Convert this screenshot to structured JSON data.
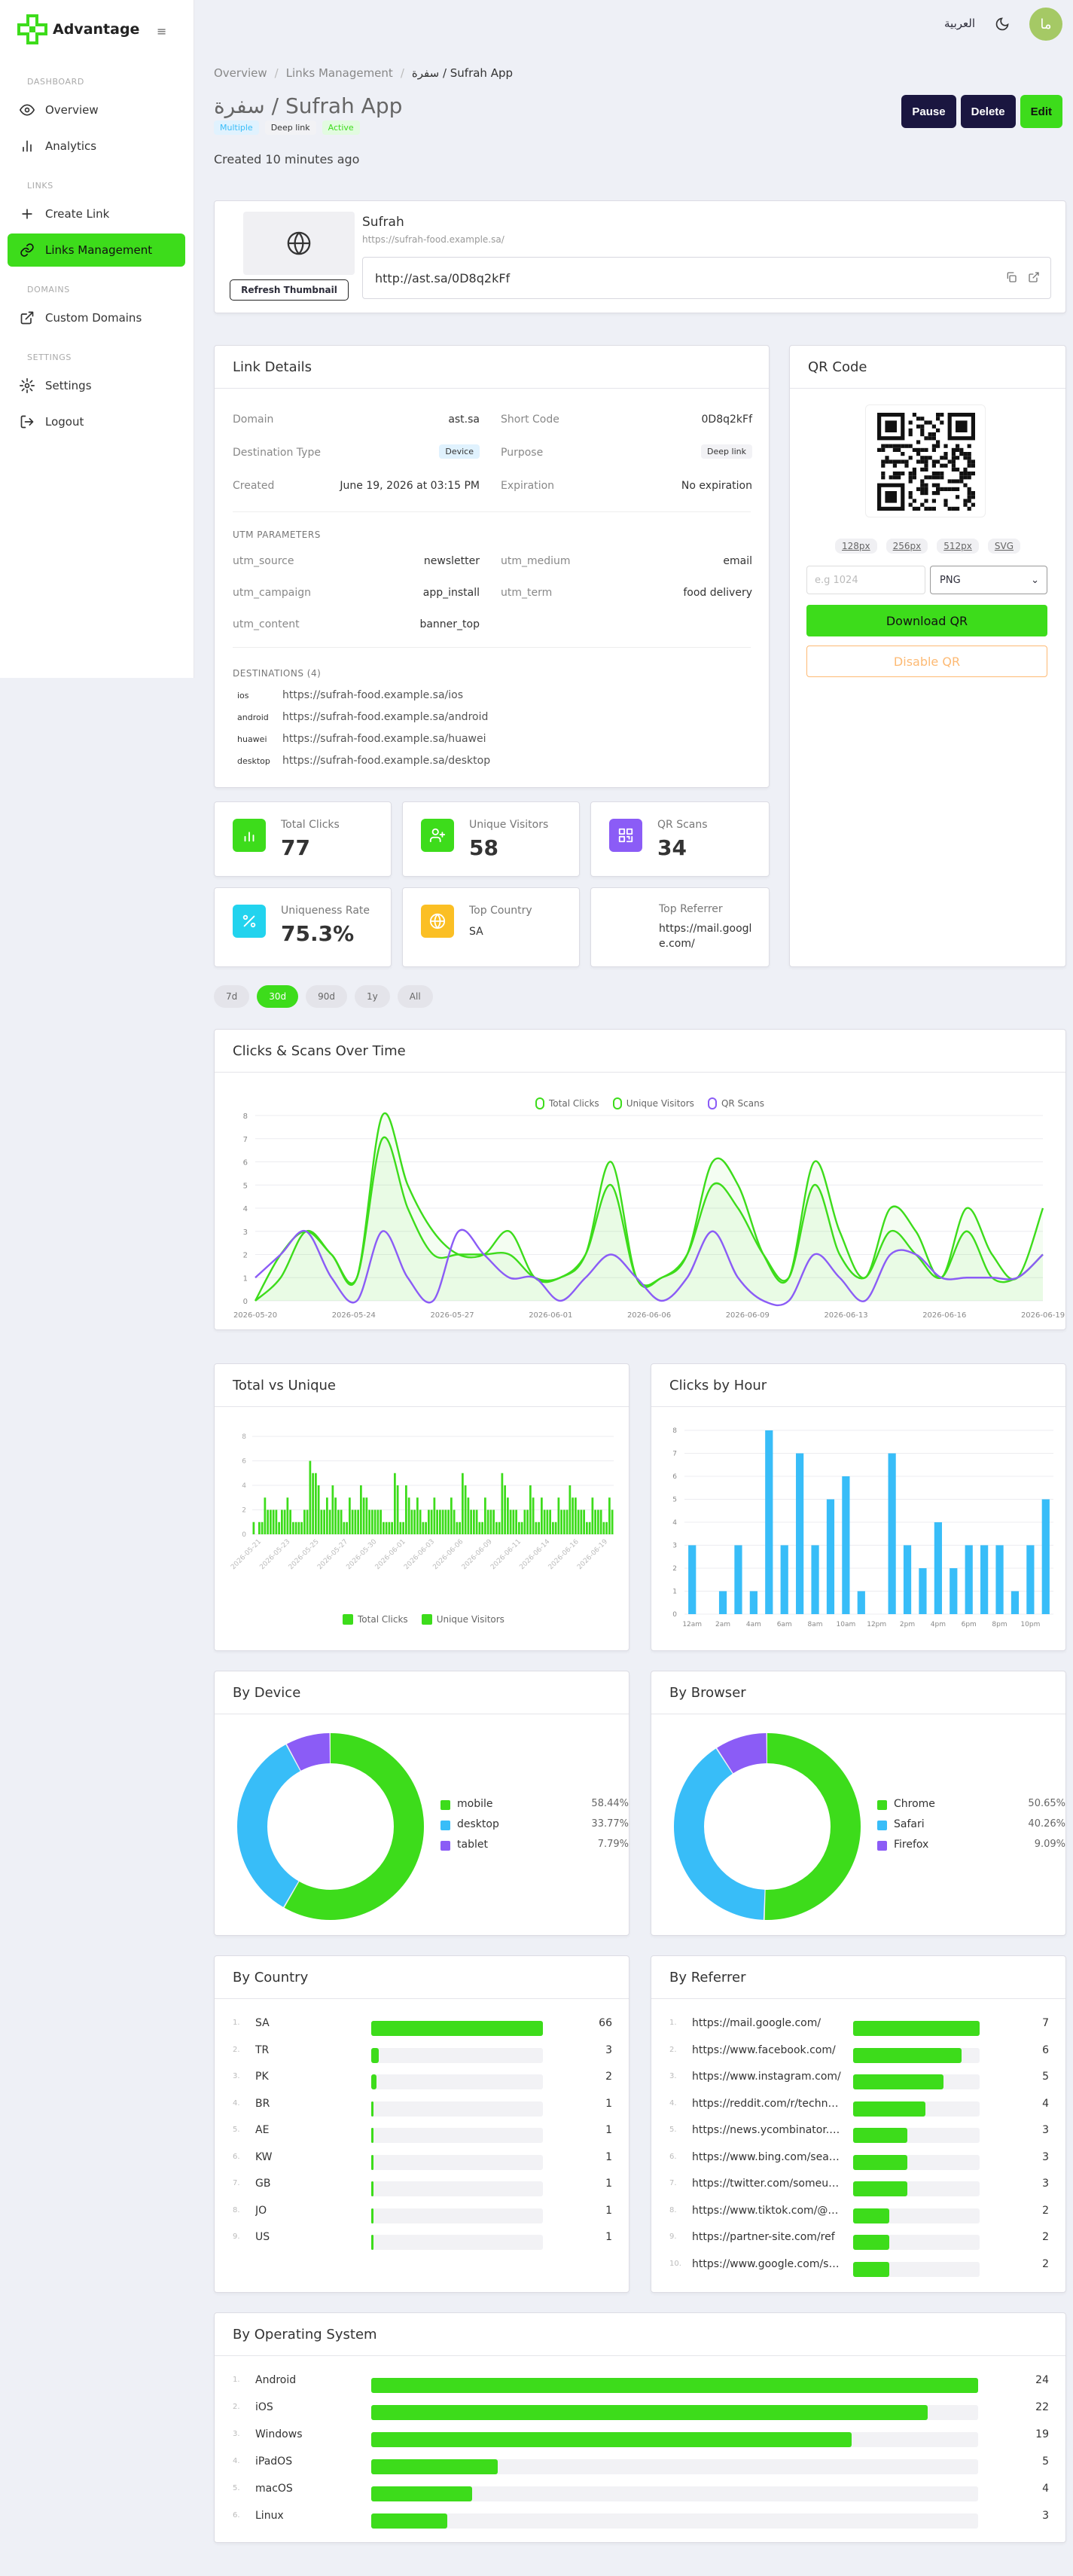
{
  "app": {
    "name": "Advantage",
    "lang_toggle": "العربية",
    "avatar_initial": "ما"
  },
  "sidebar": {
    "sections": [
      {
        "label": "DASHBOARD"
      },
      {
        "label": "LINKS"
      },
      {
        "label": "DOMAINS"
      },
      {
        "label": "SETTINGS"
      }
    ],
    "items": [
      {
        "label": "Overview",
        "icon": "eye-icon"
      },
      {
        "label": "Analytics",
        "icon": "bar-chart-icon"
      },
      {
        "label": "Create Link",
        "icon": "plus-icon"
      },
      {
        "label": "Links Management",
        "icon": "link-icon",
        "active": true
      },
      {
        "label": "Custom Domains",
        "icon": "external-link-icon"
      },
      {
        "label": "Settings",
        "icon": "gear-icon"
      },
      {
        "label": "Logout",
        "icon": "logout-icon"
      }
    ]
  },
  "breadcrumb": {
    "items": [
      "Overview",
      "Links Management",
      "سفرة / Sufrah App"
    ]
  },
  "page": {
    "title": "سفرة / Sufrah App",
    "badges": [
      "Multiple",
      "Deep link",
      "Active"
    ],
    "created": "Created 10 minutes ago",
    "actions": {
      "pause": "Pause",
      "delete": "Delete",
      "edit": "Edit"
    }
  },
  "preview": {
    "refresh_label": "Refresh Thumbnail",
    "site_name": "Sufrah",
    "site_url": "https://sufrah-food.example.sa/",
    "short_url": "http://ast.sa/0D8q2kFf"
  },
  "details": {
    "title": "Link Details",
    "fields": [
      {
        "k": "Domain",
        "v": "ast.sa"
      },
      {
        "k": "Short Code",
        "v": "0D8q2kFf"
      },
      {
        "k": "Destination Type",
        "v": "Device"
      },
      {
        "k": "Purpose",
        "v": "Deep link"
      },
      {
        "k": "Created",
        "v": "June 19, 2026 at 03:15 PM"
      },
      {
        "k": "Expiration",
        "v": "No expiration"
      }
    ],
    "utm_title": "UTM PARAMETERS",
    "utm": [
      {
        "k": "utm_source",
        "v": "newsletter"
      },
      {
        "k": "utm_medium",
        "v": "email"
      },
      {
        "k": "utm_campaign",
        "v": "app_install"
      },
      {
        "k": "utm_term",
        "v": "food delivery"
      },
      {
        "k": "utm_content",
        "v": "banner_top"
      }
    ],
    "dest_title": "DESTINATIONS (4)",
    "destinations": [
      {
        "p": "ios",
        "url": "https://sufrah-food.example.sa/ios"
      },
      {
        "p": "android",
        "url": "https://sufrah-food.example.sa/android"
      },
      {
        "p": "huawei",
        "url": "https://sufrah-food.example.sa/huawei"
      },
      {
        "p": "desktop",
        "url": "https://sufrah-food.example.sa/desktop"
      }
    ]
  },
  "qr": {
    "title": "QR Code",
    "sizes": [
      "128px",
      "256px",
      "512px",
      "SVG"
    ],
    "custom_placeholder": "e.g 1024",
    "format": "PNG",
    "download": "Download QR",
    "disable": "Disable QR"
  },
  "stats": [
    {
      "label": "Total Clicks",
      "value": "77",
      "icon": "bar-chart-icon",
      "color": "#3ddc1b"
    },
    {
      "label": "Unique Visitors",
      "value": "58",
      "icon": "user-plus-icon",
      "color": "#3ddc1b"
    },
    {
      "label": "QR Scans",
      "value": "34",
      "icon": "qr-icon",
      "color": "#8b5cf6"
    },
    {
      "label": "Uniqueness Rate",
      "value": "75.3%",
      "icon": "percent-icon",
      "color": "#22d3ee"
    },
    {
      "label": "Top Country",
      "value": "SA",
      "icon": "globe-icon",
      "color": "#fbbf24"
    },
    {
      "label": "Top Referrer",
      "value": "https://mail.google.com/"
    }
  ],
  "ranges": {
    "options": [
      "7d",
      "30d",
      "90d",
      "1y",
      "All"
    ],
    "selected": "30d"
  },
  "chart_data": [
    {
      "type": "line",
      "title": "Clicks & Scans Over Time",
      "ylim": [
        0,
        8
      ],
      "x_ticks": [
        "2026-05-20",
        "2026-05-24",
        "2026-05-27",
        "2026-06-01",
        "2026-06-06",
        "2026-06-09",
        "2026-06-13",
        "2026-06-16",
        "2026-06-19"
      ],
      "series": [
        {
          "name": "Total Clicks",
          "color": "#3ddc1b",
          "values": [
            0,
            2,
            3,
            2,
            1,
            8,
            5,
            3,
            2,
            2,
            3,
            1,
            1,
            2,
            6,
            1,
            1,
            2,
            6,
            5,
            2,
            1,
            6,
            3,
            1,
            4,
            3,
            1,
            4,
            2,
            1,
            4
          ]
        },
        {
          "name": "Unique Visitors",
          "color": "#3ddc1b",
          "values": [
            0,
            1,
            3,
            2,
            1,
            7,
            4,
            2,
            2,
            2,
            2,
            1,
            1,
            2,
            5,
            1,
            1,
            2,
            5,
            4,
            2,
            1,
            5,
            2,
            1,
            3,
            2,
            1,
            3,
            1,
            1,
            2
          ]
        },
        {
          "name": "QR Scans",
          "color": "#8b5cf6",
          "values": [
            1,
            2,
            3,
            1,
            0,
            3,
            1,
            0,
            3,
            2,
            1,
            1,
            0,
            1,
            2,
            1,
            0,
            1,
            3,
            1,
            0,
            0,
            2,
            1,
            0,
            2,
            2,
            1,
            1,
            1,
            1,
            2
          ]
        }
      ]
    },
    {
      "type": "bar",
      "title": "Total vs Unique",
      "ylim": [
        0,
        8
      ],
      "x_ticks": [
        "2026-05-21",
        "2026-05-23",
        "2026-05-25",
        "2026-05-27",
        "2026-05-30",
        "2026-06-01",
        "2026-06-03",
        "2026-06-06",
        "2026-06-09",
        "2026-06-11",
        "2026-06-14",
        "2026-06-16",
        "2026-06-19"
      ],
      "series": [
        {
          "name": "Total Clicks",
          "color": "#3ddc1b",
          "values": [
            1,
            1,
            3,
            2,
            2,
            2,
            3,
            1,
            1,
            2,
            6,
            5,
            2,
            3,
            4,
            2,
            1,
            3,
            2,
            4,
            3,
            2,
            2,
            1,
            1,
            5,
            1,
            4,
            2,
            3,
            1,
            2,
            3,
            2,
            2,
            3,
            1,
            5,
            3,
            2,
            1,
            3,
            2,
            1,
            5,
            3,
            2,
            1,
            2,
            4,
            1,
            3,
            2,
            1,
            3,
            2,
            4,
            3,
            2,
            1,
            3,
            2,
            1,
            3
          ]
        },
        {
          "name": "Unique Visitors",
          "color": "#3ddc1b",
          "values": [
            0,
            1,
            2,
            2,
            1,
            2,
            2,
            1,
            1,
            2,
            5,
            4,
            2,
            2,
            3,
            2,
            1,
            2,
            2,
            3,
            2,
            2,
            2,
            1,
            1,
            4,
            1,
            3,
            2,
            2,
            1,
            2,
            2,
            2,
            2,
            2,
            1,
            4,
            2,
            2,
            1,
            2,
            2,
            1,
            4,
            2,
            2,
            1,
            2,
            3,
            1,
            2,
            2,
            1,
            2,
            2,
            3,
            2,
            2,
            1,
            2,
            2,
            1,
            2
          ]
        }
      ]
    },
    {
      "type": "bar",
      "title": "Clicks by Hour",
      "ylim": [
        0,
        8
      ],
      "x_ticks": [
        "12am",
        "2am",
        "4am",
        "6am",
        "8am",
        "10am",
        "12pm",
        "2pm",
        "4pm",
        "6pm",
        "8pm",
        "10pm"
      ],
      "values": [
        3,
        0,
        1,
        3,
        1,
        8,
        3,
        7,
        3,
        5,
        6,
        1,
        0,
        7,
        3,
        2,
        4,
        2,
        3,
        3,
        3,
        1,
        3,
        5
      ],
      "color": "#38bdf8"
    },
    {
      "type": "pie",
      "title": "By Device",
      "slices": [
        {
          "name": "mobile",
          "pct": "58.44%",
          "value": 58.44,
          "color": "#3ddc1b"
        },
        {
          "name": "desktop",
          "pct": "33.77%",
          "value": 33.77,
          "color": "#38bdf8"
        },
        {
          "name": "tablet",
          "pct": "7.79%",
          "value": 7.79,
          "color": "#8b5cf6"
        }
      ]
    },
    {
      "type": "pie",
      "title": "By Browser",
      "slices": [
        {
          "name": "Chrome",
          "pct": "50.65%",
          "value": 50.65,
          "color": "#3ddc1b"
        },
        {
          "name": "Safari",
          "pct": "40.26%",
          "value": 40.26,
          "color": "#38bdf8"
        },
        {
          "name": "Firefox",
          "pct": "9.09%",
          "value": 9.09,
          "color": "#8b5cf6"
        }
      ]
    }
  ],
  "country": {
    "title": "By Country",
    "rows": [
      {
        "n": "SA",
        "c": 66
      },
      {
        "n": "TR",
        "c": 3
      },
      {
        "n": "PK",
        "c": 2
      },
      {
        "n": "BR",
        "c": 1
      },
      {
        "n": "AE",
        "c": 1
      },
      {
        "n": "KW",
        "c": 1
      },
      {
        "n": "GB",
        "c": 1
      },
      {
        "n": "JO",
        "c": 1
      },
      {
        "n": "US",
        "c": 1
      }
    ]
  },
  "referrer": {
    "title": "By Referrer",
    "rows": [
      {
        "n": "https://mail.google.com/",
        "c": 7
      },
      {
        "n": "https://www.facebook.com/",
        "c": 6
      },
      {
        "n": "https://www.instagram.com/",
        "c": 5
      },
      {
        "n": "https://reddit.com/r/technology",
        "c": 4
      },
      {
        "n": "https://news.ycombinator.com/",
        "c": 3
      },
      {
        "n": "https://www.bing.com/search",
        "c": 3
      },
      {
        "n": "https://twitter.com/someuser",
        "c": 3
      },
      {
        "n": "https://www.tiktok.com/@user",
        "c": 2
      },
      {
        "n": "https://partner-site.com/ref",
        "c": 2
      },
      {
        "n": "https://www.google.com/search",
        "c": 2
      }
    ]
  },
  "os": {
    "title": "By Operating System",
    "rows": [
      {
        "n": "Android",
        "c": 24
      },
      {
        "n": "iOS",
        "c": 22
      },
      {
        "n": "Windows",
        "c": 19
      },
      {
        "n": "iPadOS",
        "c": 5
      },
      {
        "n": "macOS",
        "c": 4
      },
      {
        "n": "Linux",
        "c": 3
      }
    ]
  }
}
